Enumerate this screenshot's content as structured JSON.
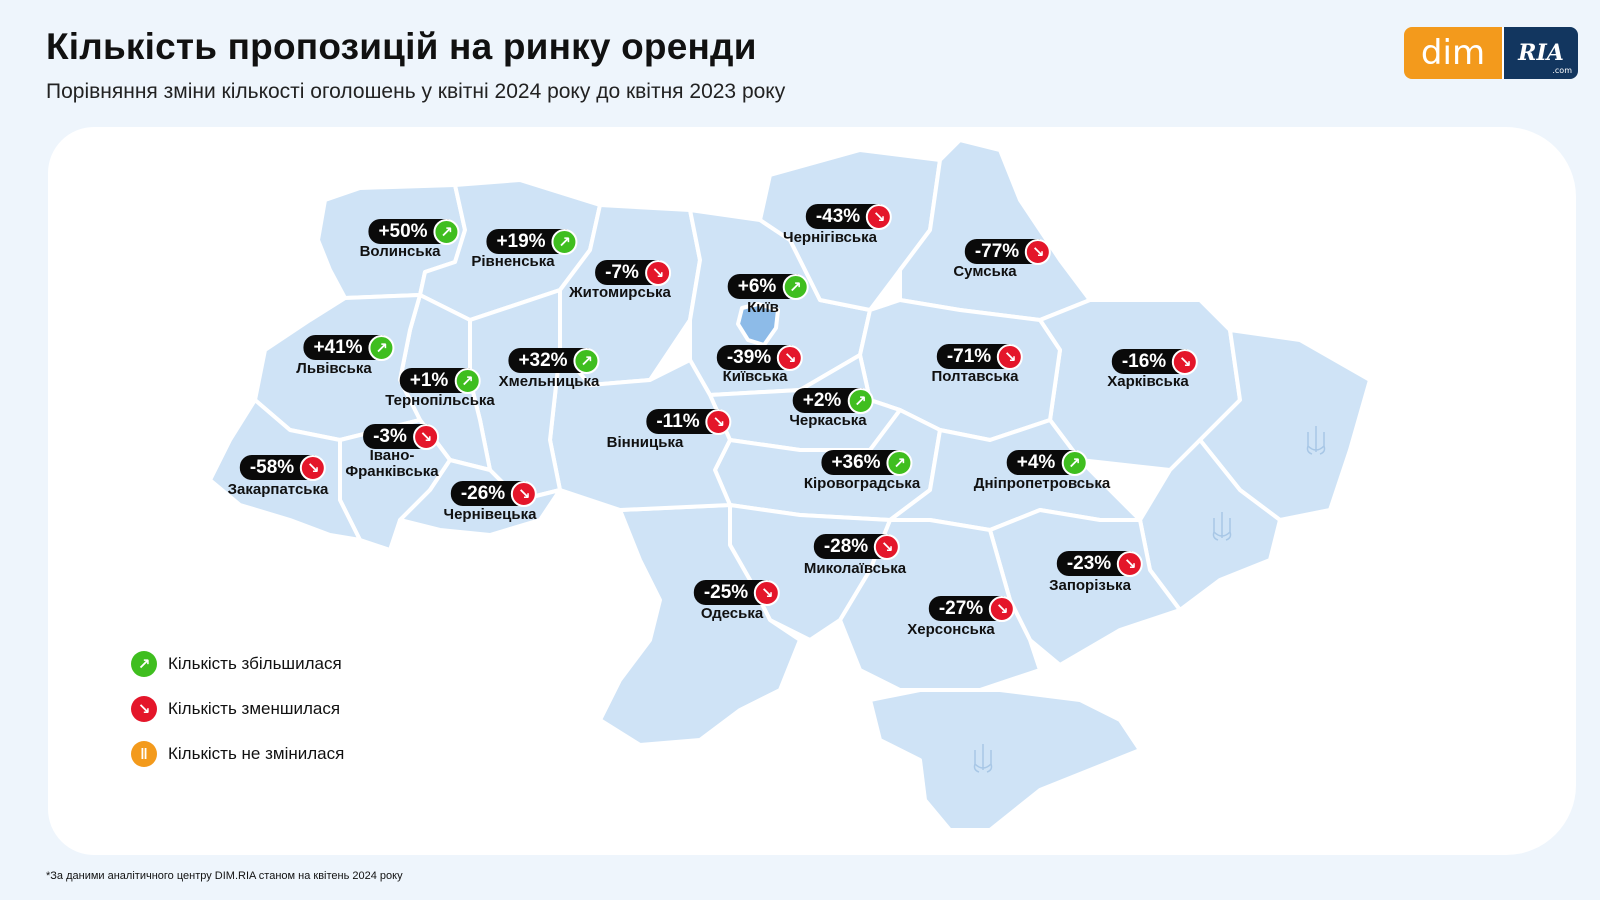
{
  "header": {
    "title": "Кількість пропозицій на ринку оренди",
    "subtitle": "Порівняння зміни кількості оголошень у квітні 2024 року до квітня 2023 року"
  },
  "logo": {
    "left": "dim",
    "right": "RIA",
    "right_suffix": ".com"
  },
  "colors": {
    "up": "#3fbe1f",
    "down": "#e4162a",
    "same": "#f39a1c",
    "map_fill": "#cfe3f6",
    "kyiv_fill": "#8dbbe8"
  },
  "regions": [
    {
      "name": "Волинська",
      "change": "+50%",
      "direction": "up"
    },
    {
      "name": "Рівненська",
      "change": "+19%",
      "direction": "up"
    },
    {
      "name": "Житомирська",
      "change": "-7%",
      "direction": "down"
    },
    {
      "name": "Чернігівська",
      "change": "-43%",
      "direction": "down"
    },
    {
      "name": "Сумська",
      "change": "-77%",
      "direction": "down"
    },
    {
      "name": "Київ",
      "change": "+6%",
      "direction": "up"
    },
    {
      "name": "Львівська",
      "change": "+41%",
      "direction": "up"
    },
    {
      "name": "Тернопільська",
      "change": "+1%",
      "direction": "up"
    },
    {
      "name": "Хмельницька",
      "change": "+32%",
      "direction": "up"
    },
    {
      "name": "Київська",
      "change": "-39%",
      "direction": "down"
    },
    {
      "name": "Полтавська",
      "change": "-71%",
      "direction": "down"
    },
    {
      "name": "Харківська",
      "change": "-16%",
      "direction": "down"
    },
    {
      "name": "Черкаська",
      "change": "+2%",
      "direction": "up"
    },
    {
      "name": "Вінницька",
      "change": "-11%",
      "direction": "down"
    },
    {
      "name": "Івано-\nФранківська",
      "change": "-3%",
      "direction": "down"
    },
    {
      "name": "Закарпатська",
      "change": "-58%",
      "direction": "down"
    },
    {
      "name": "Кіровоградська",
      "change": "+36%",
      "direction": "up"
    },
    {
      "name": "Дніпропетровська",
      "change": "+4%",
      "direction": "up"
    },
    {
      "name": "Чернівецька",
      "change": "-26%",
      "direction": "down"
    },
    {
      "name": "Миколаївська",
      "change": "-28%",
      "direction": "down"
    },
    {
      "name": "Запорізька",
      "change": "-23%",
      "direction": "down"
    },
    {
      "name": "Одеська",
      "change": "-25%",
      "direction": "down"
    },
    {
      "name": "Херсонська",
      "change": "-27%",
      "direction": "down"
    }
  ],
  "legend": [
    {
      "label": "Кількість збільшилася",
      "icon": "arrow-up-right-icon",
      "color": "#3fbe1f"
    },
    {
      "label": "Кількість зменшилася",
      "icon": "arrow-down-right-icon",
      "color": "#e4162a"
    },
    {
      "label": "Кількість не змінилася",
      "icon": "pause-icon",
      "color": "#f39a1c"
    }
  ],
  "footnote": "*За даними аналітичного центру DIM.RIA станом на квітень 2024 року"
}
